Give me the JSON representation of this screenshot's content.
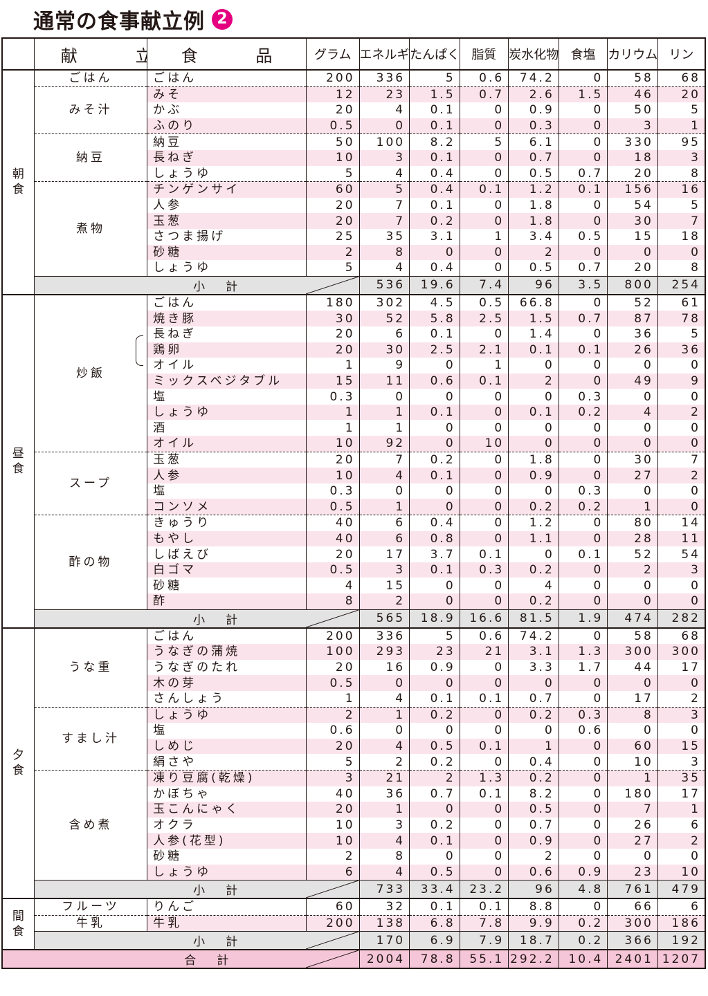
{
  "title": {
    "text": "通常の食事献立例",
    "number": "2"
  },
  "headers": [
    "献 立",
    "食 品",
    "グラム",
    "エネルギー",
    "たんぱく質",
    "脂質",
    "炭水化物",
    "食塩",
    "カリウム",
    "リン"
  ],
  "meals": [
    {
      "name": "朝食",
      "dishes": [
        {
          "name": "ごはん",
          "items": [
            [
              "ごはん",
              "200",
              "336",
              "5",
              "0.6",
              "74.2",
              "0",
              "58",
              "68"
            ]
          ]
        },
        {
          "name": "みそ汁",
          "items": [
            [
              "みそ",
              "12",
              "23",
              "1.5",
              "0.7",
              "2.6",
              "1.5",
              "46",
              "20"
            ],
            [
              "かぶ",
              "20",
              "4",
              "0.1",
              "0",
              "0.9",
              "0",
              "50",
              "5"
            ],
            [
              "ふのり",
              "0.5",
              "0",
              "0.1",
              "0",
              "0.3",
              "0",
              "3",
              "1"
            ]
          ]
        },
        {
          "name": "納豆",
          "items": [
            [
              "納豆",
              "50",
              "100",
              "8.2",
              "5",
              "6.1",
              "0",
              "330",
              "95"
            ],
            [
              "長ねぎ",
              "10",
              "3",
              "0.1",
              "0",
              "0.7",
              "0",
              "18",
              "3"
            ],
            [
              "しょうゆ",
              "5",
              "4",
              "0.4",
              "0",
              "0.5",
              "0.7",
              "20",
              "8"
            ]
          ]
        },
        {
          "name": "煮物",
          "items": [
            [
              "チンゲンサイ",
              "60",
              "5",
              "0.4",
              "0.1",
              "1.2",
              "0.1",
              "156",
              "16"
            ],
            [
              "人参",
              "20",
              "7",
              "0.1",
              "0",
              "1.8",
              "0",
              "54",
              "5"
            ],
            [
              "玉葱",
              "20",
              "7",
              "0.2",
              "0",
              "1.8",
              "0",
              "30",
              "7"
            ],
            [
              "さつま揚げ",
              "25",
              "35",
              "3.1",
              "1",
              "3.4",
              "0.5",
              "15",
              "18"
            ],
            [
              "砂糖",
              "2",
              "8",
              "0",
              "0",
              "2",
              "0",
              "0",
              "0"
            ],
            [
              "しょうゆ",
              "5",
              "4",
              "0.4",
              "0",
              "0.5",
              "0.7",
              "20",
              "8"
            ]
          ]
        }
      ],
      "subtotal": {
        "label": "小計",
        "values": [
          "536",
          "19.6",
          "7.4",
          "96",
          "3.5",
          "800",
          "254"
        ]
      }
    },
    {
      "name": "昼食",
      "dishes": [
        {
          "name": "炒飯",
          "items": [
            [
              "ごはん",
              "180",
              "302",
              "4.5",
              "0.5",
              "66.8",
              "0",
              "52",
              "61"
            ],
            [
              "焼き豚",
              "30",
              "52",
              "5.8",
              "2.5",
              "1.5",
              "0.7",
              "87",
              "78"
            ],
            [
              "長ねぎ",
              "20",
              "6",
              "0.1",
              "0",
              "1.4",
              "0",
              "36",
              "5"
            ],
            [
              "鶏卵",
              "20",
              "30",
              "2.5",
              "2.1",
              "0.1",
              "0.1",
              "26",
              "36"
            ],
            [
              "オイル",
              "1",
              "9",
              "0",
              "1",
              "0",
              "0",
              "0",
              "0"
            ],
            [
              "ミックスベジタブル",
              "15",
              "11",
              "0.6",
              "0.1",
              "2",
              "0",
              "49",
              "9"
            ],
            [
              "塩",
              "0.3",
              "0",
              "0",
              "0",
              "0",
              "0.3",
              "0",
              "0"
            ],
            [
              "しょうゆ",
              "1",
              "1",
              "0.1",
              "0",
              "0.1",
              "0.2",
              "4",
              "2"
            ],
            [
              "酒",
              "1",
              "1",
              "0",
              "0",
              "0",
              "0",
              "0",
              "0"
            ],
            [
              "オイル",
              "10",
              "92",
              "0",
              "10",
              "0",
              "0",
              "0",
              "0"
            ]
          ]
        },
        {
          "name": "スープ",
          "items": [
            [
              "玉葱",
              "20",
              "7",
              "0.2",
              "0",
              "1.8",
              "0",
              "30",
              "7"
            ],
            [
              "人参",
              "10",
              "4",
              "0.1",
              "0",
              "0.9",
              "0",
              "27",
              "2"
            ],
            [
              "塩",
              "0.3",
              "0",
              "0",
              "0",
              "0",
              "0.3",
              "0",
              "0"
            ],
            [
              "コンソメ",
              "0.5",
              "1",
              "0",
              "0",
              "0.2",
              "0.2",
              "1",
              "0"
            ]
          ]
        },
        {
          "name": "酢の物",
          "items": [
            [
              "きゅうり",
              "40",
              "6",
              "0.4",
              "0",
              "1.2",
              "0",
              "80",
              "14"
            ],
            [
              "もやし",
              "40",
              "6",
              "0.8",
              "0",
              "1.1",
              "0",
              "28",
              "11"
            ],
            [
              "しばえび",
              "20",
              "17",
              "3.7",
              "0.1",
              "0",
              "0.1",
              "52",
              "54"
            ],
            [
              "白ゴマ",
              "0.5",
              "3",
              "0.1",
              "0.3",
              "0.2",
              "0",
              "2",
              "3"
            ],
            [
              "砂糖",
              "4",
              "15",
              "0",
              "0",
              "4",
              "0",
              "0",
              "0"
            ],
            [
              "酢",
              "8",
              "2",
              "0",
              "0",
              "0.2",
              "0",
              "0",
              "0"
            ]
          ]
        }
      ],
      "subtotal": {
        "label": "小計",
        "values": [
          "565",
          "18.9",
          "16.6",
          "81.5",
          "1.9",
          "474",
          "282"
        ]
      }
    },
    {
      "name": "夕食",
      "dishes": [
        {
          "name": "うな重",
          "items": [
            [
              "ごはん",
              "200",
              "336",
              "5",
              "0.6",
              "74.2",
              "0",
              "58",
              "68"
            ],
            [
              "うなぎの蒲焼",
              "100",
              "293",
              "23",
              "21",
              "3.1",
              "1.3",
              "300",
              "300"
            ],
            [
              "うなぎのたれ",
              "20",
              "16",
              "0.9",
              "0",
              "3.3",
              "1.7",
              "44",
              "17"
            ],
            [
              "木の芽",
              "0.5",
              "0",
              "0",
              "0",
              "0",
              "0",
              "0",
              "0"
            ],
            [
              "さんしょう",
              "1",
              "4",
              "0.1",
              "0.1",
              "0.7",
              "0",
              "17",
              "2"
            ]
          ]
        },
        {
          "name": "すまし汁",
          "items": [
            [
              "しょうゆ",
              "2",
              "1",
              "0.2",
              "0",
              "0.2",
              "0.3",
              "8",
              "3"
            ],
            [
              "塩",
              "0.6",
              "0",
              "0",
              "0",
              "0",
              "0.6",
              "0",
              "0"
            ],
            [
              "しめじ",
              "20",
              "4",
              "0.5",
              "0.1",
              "1",
              "0",
              "60",
              "15"
            ],
            [
              "絹さや",
              "5",
              "2",
              "0.2",
              "0",
              "0.4",
              "0",
              "10",
              "3"
            ]
          ]
        },
        {
          "name": "含め煮",
          "items": [
            [
              "凍り豆腐(乾燥)",
              "3",
              "21",
              "2",
              "1.3",
              "0.2",
              "0",
              "1",
              "35"
            ],
            [
              "かぼちゃ",
              "40",
              "36",
              "0.7",
              "0.1",
              "8.2",
              "0",
              "180",
              "17"
            ],
            [
              "玉こんにゃく",
              "20",
              "1",
              "0",
              "0",
              "0.5",
              "0",
              "7",
              "1"
            ],
            [
              "オクラ",
              "10",
              "3",
              "0.2",
              "0",
              "0.7",
              "0",
              "26",
              "6"
            ],
            [
              "人参(花型)",
              "10",
              "4",
              "0.1",
              "0",
              "0.9",
              "0",
              "27",
              "2"
            ],
            [
              "砂糖",
              "2",
              "8",
              "0",
              "0",
              "2",
              "0",
              "0",
              "0"
            ],
            [
              "しょうゆ",
              "6",
              "4",
              "0.5",
              "0",
              "0.6",
              "0.9",
              "23",
              "10"
            ]
          ]
        }
      ],
      "subtotal": {
        "label": "小計",
        "values": [
          "733",
          "33.4",
          "23.2",
          "96",
          "4.8",
          "761",
          "479"
        ]
      }
    },
    {
      "name": "間食",
      "dishes": [
        {
          "name": "フルーツ",
          "items": [
            [
              "りんご",
              "60",
              "32",
              "0.1",
              "0.1",
              "8.8",
              "0",
              "66",
              "6"
            ]
          ]
        },
        {
          "name": "牛乳",
          "items": [
            [
              "牛乳",
              "200",
              "138",
              "6.8",
              "7.8",
              "9.9",
              "0.2",
              "300",
              "186"
            ]
          ]
        }
      ],
      "subtotal": {
        "label": "小計",
        "values": [
          "170",
          "6.9",
          "7.9",
          "18.7",
          "0.2",
          "366",
          "192"
        ]
      }
    }
  ],
  "total": {
    "label": "合計",
    "values": [
      "2004",
      "78.8",
      "55.1",
      "292.2",
      "10.4",
      "2401",
      "1207"
    ]
  },
  "colors": {
    "pink_row": "#fbe3ec",
    "subtotal_bg": "#e3e3e3",
    "total_bg": "#f5c6d8",
    "accent": "#e4007f"
  }
}
